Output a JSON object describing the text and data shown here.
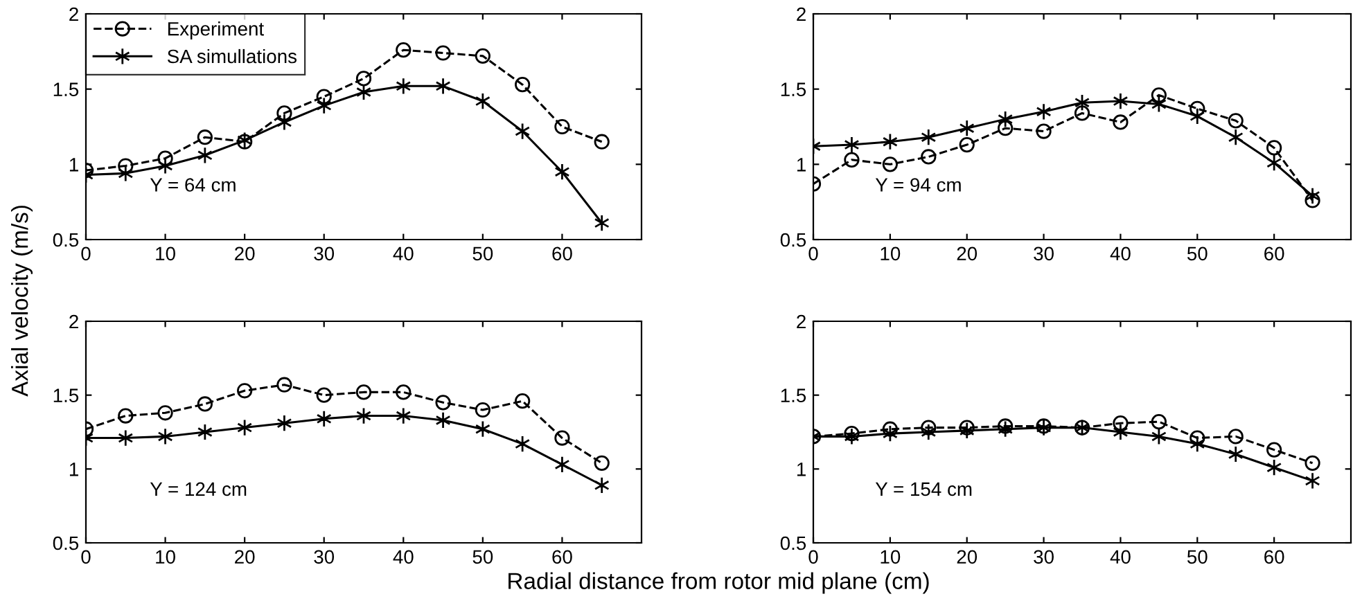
{
  "chart_data": [
    {
      "type": "line",
      "x": [
        0,
        5,
        10,
        15,
        20,
        25,
        30,
        35,
        40,
        45,
        50,
        55,
        60,
        65
      ],
      "xlim": [
        0,
        70
      ],
      "xticks": [
        0,
        10,
        20,
        30,
        40,
        50,
        60
      ],
      "ylim": [
        0.5,
        2
      ],
      "yticks": [
        0.5,
        1,
        1.5,
        2
      ],
      "ylabel": "Axial velocity (m/s)",
      "annotations": [
        "Y = 64 cm"
      ],
      "legend": "top left",
      "grid": false,
      "series": [
        {
          "name": "Experiment",
          "color": "#000000",
          "marker": "circle",
          "line_style": "dashed",
          "values": [
            0.96,
            0.99,
            1.04,
            1.18,
            1.15,
            1.34,
            1.45,
            1.57,
            1.76,
            1.74,
            1.72,
            1.53,
            1.25,
            1.15
          ]
        },
        {
          "name": "SA simullations",
          "color": "#000000",
          "marker": "cross",
          "line_style": "solid",
          "values": [
            0.93,
            0.94,
            0.99,
            1.06,
            1.16,
            1.28,
            1.39,
            1.48,
            1.52,
            1.52,
            1.42,
            1.22,
            0.95,
            0.61
          ]
        }
      ]
    },
    {
      "type": "line",
      "x": [
        0,
        5,
        10,
        15,
        20,
        25,
        30,
        35,
        40,
        45,
        50,
        55,
        60,
        65
      ],
      "xlim": [
        0,
        70
      ],
      "xticks": [
        0,
        10,
        20,
        30,
        40,
        50,
        60
      ],
      "ylim": [
        0.5,
        2
      ],
      "yticks": [
        0.5,
        1,
        1.5,
        2
      ],
      "annotations": [
        "Y = 94 cm"
      ],
      "grid": false,
      "series": [
        {
          "color": "#000000",
          "marker": "circle",
          "line_style": "dashed",
          "values": [
            0.87,
            1.03,
            1.0,
            1.05,
            1.13,
            1.24,
            1.22,
            1.34,
            1.28,
            1.46,
            1.37,
            1.29,
            1.11,
            0.76
          ]
        },
        {
          "color": "#000000",
          "marker": "cross",
          "line_style": "solid",
          "values": [
            1.12,
            1.13,
            1.15,
            1.18,
            1.24,
            1.3,
            1.35,
            1.41,
            1.42,
            1.4,
            1.32,
            1.18,
            1.01,
            0.79
          ]
        }
      ]
    },
    {
      "type": "line",
      "x": [
        0,
        5,
        10,
        15,
        20,
        25,
        30,
        35,
        40,
        45,
        50,
        55,
        60,
        65
      ],
      "xlim": [
        0,
        70
      ],
      "xticks": [
        0,
        10,
        20,
        30,
        40,
        50,
        60
      ],
      "ylim": [
        0.5,
        2
      ],
      "yticks": [
        0.5,
        1,
        1.5,
        2
      ],
      "xlabel": "Radial distance from rotor mid plane (cm)",
      "annotations": [
        "Y = 124 cm"
      ],
      "grid": false,
      "series": [
        {
          "color": "#000000",
          "marker": "circle",
          "line_style": "dashed",
          "values": [
            1.27,
            1.36,
            1.38,
            1.44,
            1.53,
            1.57,
            1.5,
            1.52,
            1.52,
            1.45,
            1.4,
            1.46,
            1.21,
            1.04
          ]
        },
        {
          "color": "#000000",
          "marker": "cross",
          "line_style": "solid",
          "values": [
            1.21,
            1.21,
            1.22,
            1.25,
            1.28,
            1.31,
            1.34,
            1.36,
            1.36,
            1.33,
            1.27,
            1.17,
            1.03,
            0.89
          ]
        }
      ]
    },
    {
      "type": "line",
      "x": [
        0,
        5,
        10,
        15,
        20,
        25,
        30,
        35,
        40,
        45,
        50,
        55,
        60,
        65
      ],
      "xlim": [
        0,
        70
      ],
      "xticks": [
        0,
        10,
        20,
        30,
        40,
        50,
        60
      ],
      "ylim": [
        0.5,
        2
      ],
      "yticks": [
        0.5,
        1,
        1.5,
        2
      ],
      "annotations": [
        "Y = 154 cm"
      ],
      "grid": false,
      "series": [
        {
          "color": "#000000",
          "marker": "circle",
          "line_style": "dashed",
          "values": [
            1.22,
            1.24,
            1.27,
            1.28,
            1.28,
            1.29,
            1.29,
            1.28,
            1.31,
            1.32,
            1.21,
            1.22,
            1.13,
            1.04
          ]
        },
        {
          "color": "#000000",
          "marker": "cross",
          "line_style": "solid",
          "values": [
            1.22,
            1.22,
            1.24,
            1.25,
            1.26,
            1.27,
            1.28,
            1.28,
            1.25,
            1.22,
            1.17,
            1.1,
            1.01,
            0.92
          ]
        }
      ]
    }
  ]
}
